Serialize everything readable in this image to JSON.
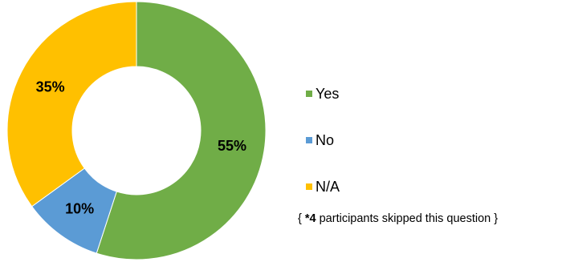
{
  "chart_data": {
    "type": "pie",
    "variant": "donut",
    "title": "",
    "categories": [
      "Yes",
      "No",
      "N/A"
    ],
    "values": [
      55,
      10,
      35
    ],
    "value_labels": [
      "55%",
      "10%",
      "35%"
    ],
    "colors": [
      "#70AD47",
      "#5B9BD5",
      "#FFC000"
    ],
    "legend_position": "right"
  },
  "legend": [
    {
      "label": "Yes",
      "color": "#70AD47"
    },
    {
      "label": "No",
      "color": "#5B9BD5"
    },
    {
      "label": "N/A",
      "color": "#FFC000"
    }
  ],
  "note": {
    "open": "{ ",
    "bold": "*4",
    "rest": " participants skipped this question }"
  }
}
